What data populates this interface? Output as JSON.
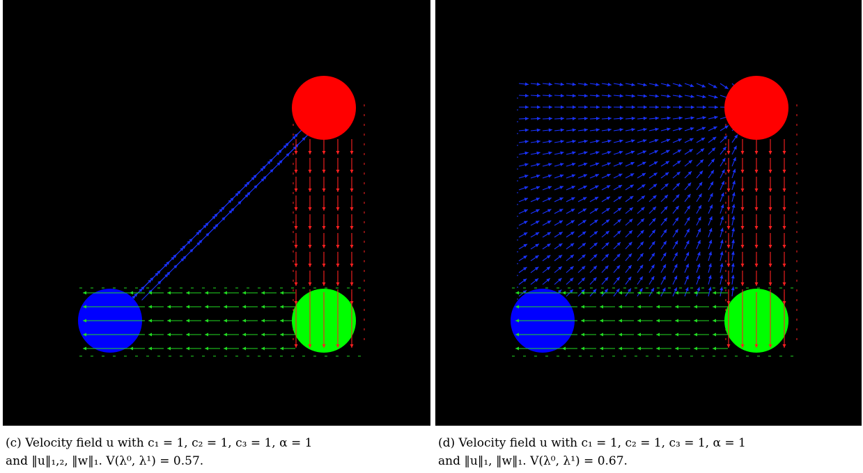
{
  "figures": [
    {
      "id": "c",
      "caption_line1": "(c) Velocity field u with c₁ = 1, c₂ = 1, c₃ = 1, α = 1",
      "caption_line2": "and ‖u‖₁,₂, ‖w‖₁. V(λ⁰, λ¹) = 0.57.",
      "mode": "diagonal",
      "circles": [
        {
          "name": "red",
          "color": "#ff0000"
        },
        {
          "name": "green",
          "color": "#00ff00"
        },
        {
          "name": "blue",
          "color": "#0000ff"
        }
      ],
      "arrow_colors": {
        "blue": "#1a33ff",
        "red": "#ff2020",
        "green": "#22dd22"
      }
    },
    {
      "id": "d",
      "caption_line1": "(d) Velocity field u with c₁ = 1, c₂ = 1, c₃ = 1, α = 1",
      "caption_line2": "and ‖u‖₁, ‖w‖₁. V(λ⁰, λ¹) = 0.67.",
      "mode": "spread",
      "circles": [
        {
          "name": "red",
          "color": "#ff0000"
        },
        {
          "name": "green",
          "color": "#00ff00"
        },
        {
          "name": "blue",
          "color": "#0000ff"
        }
      ],
      "arrow_colors": {
        "blue": "#1a33ff",
        "red": "#ff2020",
        "green": "#22dd22"
      }
    }
  ]
}
